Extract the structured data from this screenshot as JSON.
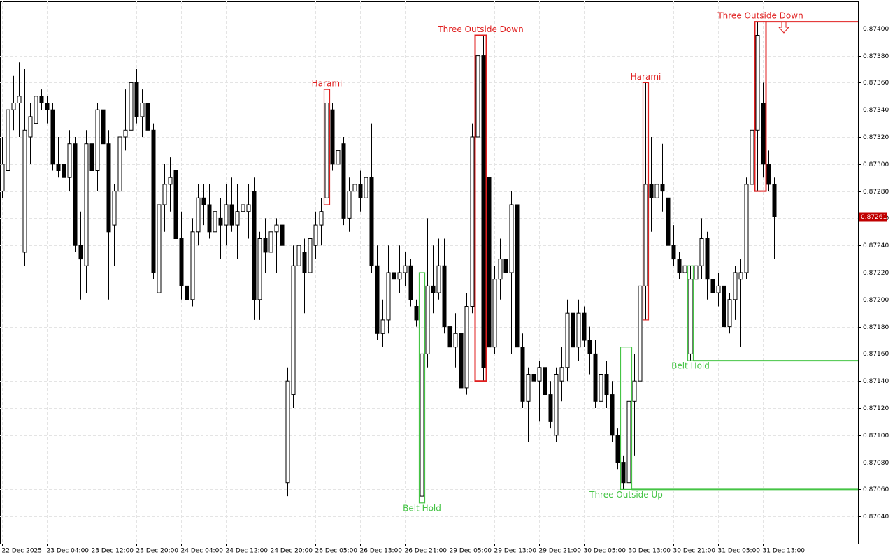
{
  "chart_data": {
    "type": "candlestick",
    "categories": [
      "22 Dec 2025",
      null,
      null,
      null,
      null,
      null,
      null,
      null,
      "23 Dec 04:00",
      null,
      null,
      null,
      null,
      null,
      null,
      null,
      "23 Dec 12:00",
      null,
      null,
      null,
      null,
      null,
      null,
      null,
      "23 Dec 20:00",
      null,
      null,
      null,
      null,
      null,
      null,
      null,
      "24 Dec 04:00",
      null,
      null,
      null,
      null,
      null,
      null,
      null,
      "24 Dec 12:00",
      null,
      null,
      null,
      null,
      null,
      null,
      null,
      "24 Dec 20:00",
      null,
      null,
      null,
      null,
      null,
      null,
      null,
      "26 Dec 05:00",
      null,
      null,
      null,
      null,
      null,
      null,
      null,
      "26 Dec 13:00",
      null,
      null,
      null,
      null,
      null,
      null,
      null,
      "26 Dec 21:00",
      null,
      null,
      null,
      null,
      null,
      null,
      null,
      "29 Dec 05:00",
      null,
      null,
      null,
      null,
      null,
      null,
      null,
      "29 Dec 13:00",
      null,
      null,
      null,
      null,
      null,
      null,
      null,
      "29 Dec 21:00",
      null,
      null,
      null,
      null,
      null,
      null,
      null,
      "30 Dec 05:00",
      null,
      null,
      null,
      null,
      null,
      null,
      null,
      "30 Dec 13:00",
      null,
      null,
      null,
      null,
      null,
      null,
      null,
      "30 Dec 21:00",
      null,
      null,
      null,
      null,
      null,
      null,
      null,
      "31 Dec 05:00",
      null,
      null,
      null,
      null,
      null,
      null,
      null,
      "31 Dec 13:00",
      null,
      null
    ],
    "open": [
      0.8728,
      0.87295,
      0.8734,
      0.87345,
      0.87235,
      0.8732,
      0.8733,
      0.8735,
      0.87345,
      0.8734,
      0.873,
      0.873,
      0.8729,
      0.87315,
      0.8724,
      0.87225,
      0.87315,
      0.87295,
      0.8734,
      0.87315,
      0.87255,
      0.8728,
      0.8732,
      0.87325,
      0.8736,
      0.87335,
      0.87345,
      0.87325,
      0.87205,
      0.8727,
      0.87285,
      0.87295,
      0.87245,
      0.8721,
      0.872,
      0.8725,
      0.87275,
      0.8727,
      0.8725,
      0.8726,
      0.87255,
      0.8727,
      0.87255,
      0.87265,
      0.87265,
      0.8728,
      0.872,
      0.87245,
      0.87235,
      0.8725,
      0.87255,
      0.87065,
      0.8713,
      0.87225,
      0.87235,
      0.8722,
      0.8724,
      0.87255,
      0.87275,
      0.8734,
      0.873,
      0.87315,
      0.8726,
      0.8728,
      0.87285,
      0.87275,
      0.8729,
      0.87225,
      0.87175,
      0.87185,
      0.8722,
      0.87215,
      0.8722,
      0.87225,
      0.87195,
      0.87055,
      0.8716,
      0.8721,
      0.87205,
      0.87225,
      0.8718,
      0.87165,
      0.87175,
      0.87135,
      0.87195,
      0.8732,
      0.8738,
      0.8729,
      0.87165,
      0.87215,
      0.8723,
      0.8722,
      0.8727,
      0.87165,
      0.87125,
      0.87145,
      0.8714,
      0.8715,
      0.8713,
      0.871,
      0.8714,
      0.8715,
      0.8719,
      0.87165,
      0.8719,
      0.8717,
      0.8716,
      0.87125,
      0.87145,
      0.8713,
      0.871,
      0.8708,
      0.87065,
      0.87125,
      0.8714,
      0.8721,
      0.87285,
      0.87275,
      0.87285,
      0.87275,
      0.8724,
      0.8723,
      0.8722,
      0.8716,
      0.87215,
      0.87225,
      0.87245,
      0.87215,
      0.87205,
      0.8721,
      0.8718,
      0.872,
      0.87215,
      0.8722,
      0.87285,
      0.87325,
      0.87345,
      0.873,
      0.87285
    ],
    "high": [
      0.8732,
      0.87355,
      0.87365,
      0.87375,
      0.8737,
      0.87345,
      0.87365,
      0.87355,
      0.8735,
      0.87345,
      0.8732,
      0.8731,
      0.87325,
      0.8732,
      0.87265,
      0.87325,
      0.87345,
      0.87345,
      0.87355,
      0.87325,
      0.87285,
      0.8733,
      0.87355,
      0.8737,
      0.8737,
      0.87355,
      0.8735,
      0.8733,
      0.8728,
      0.873,
      0.87305,
      0.873,
      0.87265,
      0.8722,
      0.8726,
      0.87285,
      0.87285,
      0.87285,
      0.87275,
      0.87275,
      0.87285,
      0.8729,
      0.87285,
      0.8729,
      0.87285,
      0.8729,
      0.8725,
      0.8726,
      0.87255,
      0.8726,
      0.8726,
      0.8715,
      0.8724,
      0.87245,
      0.87245,
      0.87255,
      0.87265,
      0.87275,
      0.87355,
      0.87345,
      0.8733,
      0.8732,
      0.8729,
      0.873,
      0.87295,
      0.87295,
      0.8733,
      0.8724,
      0.872,
      0.8724,
      0.8724,
      0.8724,
      0.87235,
      0.8723,
      0.872,
      0.8722,
      0.8726,
      0.8724,
      0.87245,
      0.87245,
      0.872,
      0.8719,
      0.8718,
      0.87205,
      0.8733,
      0.8739,
      0.87395,
      0.873,
      0.87225,
      0.87245,
      0.8724,
      0.8728,
      0.87335,
      0.87175,
      0.8715,
      0.8716,
      0.87155,
      0.87165,
      0.8714,
      0.8715,
      0.87165,
      0.872,
      0.87205,
      0.872,
      0.87195,
      0.8718,
      0.8717,
      0.8715,
      0.87155,
      0.8714,
      0.87105,
      0.87085,
      0.87165,
      0.8716,
      0.8722,
      0.8736,
      0.8732,
      0.87295,
      0.87315,
      0.87285,
      0.87255,
      0.87235,
      0.87235,
      0.87225,
      0.87235,
      0.8726,
      0.8725,
      0.87225,
      0.8722,
      0.87215,
      0.87205,
      0.87225,
      0.8723,
      0.8729,
      0.8733,
      0.87405,
      0.8736,
      0.8731,
      0.8729
    ],
    "low": [
      0.87275,
      0.8729,
      0.87325,
      0.8732,
      0.87225,
      0.873,
      0.8731,
      0.8734,
      0.8733,
      0.87295,
      0.8729,
      0.87285,
      0.8728,
      0.87235,
      0.872,
      0.87205,
      0.8728,
      0.8728,
      0.8731,
      0.872,
      0.87225,
      0.8727,
      0.8731,
      0.8731,
      0.8733,
      0.8732,
      0.8732,
      0.87215,
      0.87185,
      0.8725,
      0.87265,
      0.8724,
      0.872,
      0.87195,
      0.87195,
      0.8724,
      0.87255,
      0.87245,
      0.8723,
      0.8723,
      0.8724,
      0.8725,
      0.8723,
      0.8725,
      0.87245,
      0.87185,
      0.87185,
      0.8722,
      0.872,
      0.8722,
      0.87235,
      0.87055,
      0.8712,
      0.8718,
      0.8719,
      0.872,
      0.8723,
      0.8724,
      0.8727,
      0.87295,
      0.8728,
      0.87255,
      0.8725,
      0.8726,
      0.87265,
      0.8726,
      0.8722,
      0.8717,
      0.87165,
      0.87175,
      0.872,
      0.87205,
      0.8721,
      0.87195,
      0.8718,
      0.8705,
      0.8715,
      0.8719,
      0.872,
      0.87175,
      0.8716,
      0.8715,
      0.8713,
      0.8713,
      0.8719,
      0.873,
      0.8714,
      0.871,
      0.8716,
      0.872,
      0.87215,
      0.8716,
      0.8716,
      0.8712,
      0.87095,
      0.87115,
      0.8711,
      0.8712,
      0.87105,
      0.87095,
      0.87125,
      0.8714,
      0.8716,
      0.87155,
      0.87165,
      0.87145,
      0.8712,
      0.8711,
      0.8712,
      0.87095,
      0.87075,
      0.8706,
      0.8706,
      0.87085,
      0.87135,
      0.87185,
      0.8725,
      0.8726,
      0.87265,
      0.87235,
      0.87225,
      0.87215,
      0.87205,
      0.87155,
      0.8721,
      0.87215,
      0.872,
      0.872,
      0.87195,
      0.87175,
      0.87175,
      0.87185,
      0.87165,
      0.87215,
      0.8728,
      0.8728,
      0.8729,
      0.8728,
      0.8723
    ],
    "close": [
      0.873,
      0.8734,
      0.87345,
      0.8735,
      0.87325,
      0.87335,
      0.8735,
      0.87345,
      0.8734,
      0.873,
      0.87295,
      0.8729,
      0.87315,
      0.8724,
      0.8723,
      0.87315,
      0.87295,
      0.8734,
      0.87315,
      0.8725,
      0.8728,
      0.8732,
      0.87325,
      0.8736,
      0.87335,
      0.87345,
      0.87325,
      0.8722,
      0.8727,
      0.87285,
      0.8729,
      0.87245,
      0.8721,
      0.872,
      0.8725,
      0.87275,
      0.8727,
      0.8725,
      0.87265,
      0.87255,
      0.8727,
      0.87255,
      0.87265,
      0.8727,
      0.8727,
      0.872,
      0.87245,
      0.87235,
      0.8725,
      0.87255,
      0.8724,
      0.8714,
      0.87225,
      0.8724,
      0.8722,
      0.87245,
      0.87255,
      0.87265,
      0.87345,
      0.873,
      0.8731,
      0.8726,
      0.8728,
      0.87285,
      0.87275,
      0.8729,
      0.87225,
      0.87175,
      0.87185,
      0.8722,
      0.87215,
      0.8722,
      0.87225,
      0.872,
      0.87185,
      0.8716,
      0.8721,
      0.87205,
      0.87225,
      0.8718,
      0.87165,
      0.87175,
      0.87135,
      0.87195,
      0.8732,
      0.8738,
      0.8715,
      0.87165,
      0.87215,
      0.8723,
      0.8722,
      0.8727,
      0.87165,
      0.87125,
      0.87145,
      0.8714,
      0.8715,
      0.8713,
      0.8711,
      0.87145,
      0.8715,
      0.8719,
      0.87165,
      0.8719,
      0.8717,
      0.8716,
      0.87125,
      0.87145,
      0.8713,
      0.871,
      0.8708,
      0.87065,
      0.87125,
      0.8714,
      0.8721,
      0.87285,
      0.87275,
      0.87285,
      0.8728,
      0.8724,
      0.8723,
      0.8722,
      0.87225,
      0.87215,
      0.87225,
      0.87245,
      0.87215,
      0.87205,
      0.8721,
      0.8718,
      0.872,
      0.8722,
      0.8722,
      0.87285,
      0.87325,
      0.87395,
      0.873,
      0.87285,
      0.87261
    ],
    "current_price": 0.87261,
    "current_price_color": "#c00000",
    "ylim": [
      0.8702,
      0.8742
    ],
    "yticks": [
      {
        "value": 0.8704,
        "label": "0.87040"
      },
      {
        "value": 0.8706,
        "label": "0.87060"
      },
      {
        "value": 0.8708,
        "label": "0.87080"
      },
      {
        "value": 0.871,
        "label": "0.87100"
      },
      {
        "value": 0.8712,
        "label": "0.87120"
      },
      {
        "value": 0.8714,
        "label": "0.87140"
      },
      {
        "value": 0.8716,
        "label": "0.87160"
      },
      {
        "value": 0.8718,
        "label": "0.87180"
      },
      {
        "value": 0.872,
        "label": "0.87200"
      },
      {
        "value": 0.8722,
        "label": "0.87220"
      },
      {
        "value": 0.8724,
        "label": "0.87240"
      },
      {
        "value": 0.8726,
        "label": "0.87260"
      },
      {
        "value": 0.8728,
        "label": "0.87280"
      },
      {
        "value": 0.873,
        "label": "0.87300"
      },
      {
        "value": 0.8732,
        "label": "0.87320"
      },
      {
        "value": 0.8734,
        "label": "0.87340"
      },
      {
        "value": 0.8736,
        "label": "0.87360"
      },
      {
        "value": 0.8738,
        "label": "0.87380"
      },
      {
        "value": 0.874,
        "label": "0.87400"
      }
    ],
    "grid": true,
    "annotations": [
      {
        "text": "Harami",
        "color": "#e02020",
        "position": "above",
        "extend": false
      },
      {
        "text": "Belt Hold",
        "color": "#44c444",
        "position": "below",
        "extend": false
      },
      {
        "text": "Three Outside Down",
        "color": "#e02020",
        "position": "above",
        "extend": false
      },
      {
        "text": "Three Outside Up",
        "color": "#44c444",
        "position": "below",
        "extend": true
      },
      {
        "text": "Harami",
        "color": "#e02020",
        "position": "above",
        "extend": false
      },
      {
        "text": "Belt Hold",
        "color": "#44c444",
        "position": "below",
        "extend": true
      },
      {
        "text": "Three Outside Down",
        "color": "#e02020",
        "position": "above",
        "extend": true
      }
    ]
  }
}
